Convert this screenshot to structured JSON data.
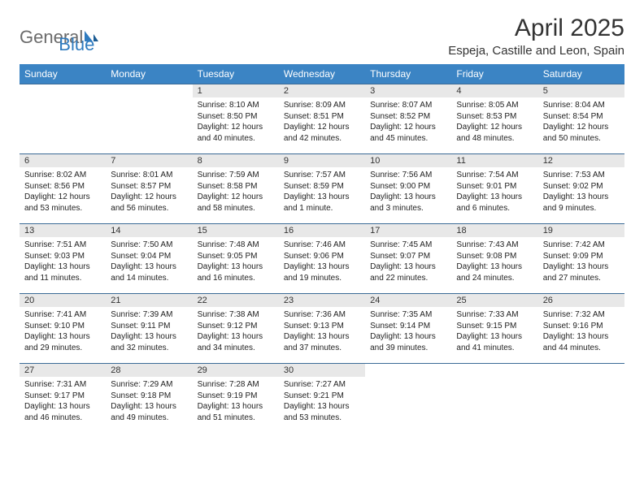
{
  "logo": {
    "text1": "General",
    "text2": "Blue"
  },
  "title": "April 2025",
  "location": "Espeja, Castille and Leon, Spain",
  "colors": {
    "header_bg": "#3b84c4",
    "header_text": "#ffffff",
    "daynum_bg": "#e8e8e8",
    "cell_border": "#3b6a96",
    "logo_gray": "#6b6b6b",
    "logo_blue": "#2f7bbf",
    "page_bg": "#ffffff",
    "text": "#222222"
  },
  "typography": {
    "title_fontsize": 30,
    "location_fontsize": 15,
    "weekday_fontsize": 12,
    "daynum_fontsize": 11,
    "content_fontsize": 10
  },
  "layout": {
    "cols": 7,
    "rows": 5,
    "leading_blanks": 2,
    "trailing_blanks": 3
  },
  "weekdays": [
    "Sunday",
    "Monday",
    "Tuesday",
    "Wednesday",
    "Thursday",
    "Friday",
    "Saturday"
  ],
  "days": [
    {
      "n": 1,
      "sr": "8:10 AM",
      "ss": "8:50 PM",
      "dl": "12 hours and 40 minutes."
    },
    {
      "n": 2,
      "sr": "8:09 AM",
      "ss": "8:51 PM",
      "dl": "12 hours and 42 minutes."
    },
    {
      "n": 3,
      "sr": "8:07 AM",
      "ss": "8:52 PM",
      "dl": "12 hours and 45 minutes."
    },
    {
      "n": 4,
      "sr": "8:05 AM",
      "ss": "8:53 PM",
      "dl": "12 hours and 48 minutes."
    },
    {
      "n": 5,
      "sr": "8:04 AM",
      "ss": "8:54 PM",
      "dl": "12 hours and 50 minutes."
    },
    {
      "n": 6,
      "sr": "8:02 AM",
      "ss": "8:56 PM",
      "dl": "12 hours and 53 minutes."
    },
    {
      "n": 7,
      "sr": "8:01 AM",
      "ss": "8:57 PM",
      "dl": "12 hours and 56 minutes."
    },
    {
      "n": 8,
      "sr": "7:59 AM",
      "ss": "8:58 PM",
      "dl": "12 hours and 58 minutes."
    },
    {
      "n": 9,
      "sr": "7:57 AM",
      "ss": "8:59 PM",
      "dl": "13 hours and 1 minute."
    },
    {
      "n": 10,
      "sr": "7:56 AM",
      "ss": "9:00 PM",
      "dl": "13 hours and 3 minutes."
    },
    {
      "n": 11,
      "sr": "7:54 AM",
      "ss": "9:01 PM",
      "dl": "13 hours and 6 minutes."
    },
    {
      "n": 12,
      "sr": "7:53 AM",
      "ss": "9:02 PM",
      "dl": "13 hours and 9 minutes."
    },
    {
      "n": 13,
      "sr": "7:51 AM",
      "ss": "9:03 PM",
      "dl": "13 hours and 11 minutes."
    },
    {
      "n": 14,
      "sr": "7:50 AM",
      "ss": "9:04 PM",
      "dl": "13 hours and 14 minutes."
    },
    {
      "n": 15,
      "sr": "7:48 AM",
      "ss": "9:05 PM",
      "dl": "13 hours and 16 minutes."
    },
    {
      "n": 16,
      "sr": "7:46 AM",
      "ss": "9:06 PM",
      "dl": "13 hours and 19 minutes."
    },
    {
      "n": 17,
      "sr": "7:45 AM",
      "ss": "9:07 PM",
      "dl": "13 hours and 22 minutes."
    },
    {
      "n": 18,
      "sr": "7:43 AM",
      "ss": "9:08 PM",
      "dl": "13 hours and 24 minutes."
    },
    {
      "n": 19,
      "sr": "7:42 AM",
      "ss": "9:09 PM",
      "dl": "13 hours and 27 minutes."
    },
    {
      "n": 20,
      "sr": "7:41 AM",
      "ss": "9:10 PM",
      "dl": "13 hours and 29 minutes."
    },
    {
      "n": 21,
      "sr": "7:39 AM",
      "ss": "9:11 PM",
      "dl": "13 hours and 32 minutes."
    },
    {
      "n": 22,
      "sr": "7:38 AM",
      "ss": "9:12 PM",
      "dl": "13 hours and 34 minutes."
    },
    {
      "n": 23,
      "sr": "7:36 AM",
      "ss": "9:13 PM",
      "dl": "13 hours and 37 minutes."
    },
    {
      "n": 24,
      "sr": "7:35 AM",
      "ss": "9:14 PM",
      "dl": "13 hours and 39 minutes."
    },
    {
      "n": 25,
      "sr": "7:33 AM",
      "ss": "9:15 PM",
      "dl": "13 hours and 41 minutes."
    },
    {
      "n": 26,
      "sr": "7:32 AM",
      "ss": "9:16 PM",
      "dl": "13 hours and 44 minutes."
    },
    {
      "n": 27,
      "sr": "7:31 AM",
      "ss": "9:17 PM",
      "dl": "13 hours and 46 minutes."
    },
    {
      "n": 28,
      "sr": "7:29 AM",
      "ss": "9:18 PM",
      "dl": "13 hours and 49 minutes."
    },
    {
      "n": 29,
      "sr": "7:28 AM",
      "ss": "9:19 PM",
      "dl": "13 hours and 51 minutes."
    },
    {
      "n": 30,
      "sr": "7:27 AM",
      "ss": "9:21 PM",
      "dl": "13 hours and 53 minutes."
    }
  ],
  "labels": {
    "sunrise": "Sunrise:",
    "sunset": "Sunset:",
    "daylight": "Daylight:"
  }
}
